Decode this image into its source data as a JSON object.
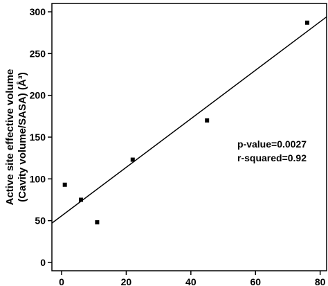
{
  "chart_data": {
    "type": "scatter",
    "title": "",
    "xlabel": "",
    "ylabel_lines": [
      "Active site effective volume",
      "(Cavity volume/SASA) (Å³)"
    ],
    "xlim": [
      -3,
      82
    ],
    "ylim": [
      -10,
      310
    ],
    "x_ticks": [
      0,
      20,
      40,
      60,
      80
    ],
    "y_ticks": [
      0,
      50,
      100,
      150,
      200,
      250,
      300
    ],
    "points": [
      {
        "x": 1,
        "y": 93
      },
      {
        "x": 6,
        "y": 75
      },
      {
        "x": 11,
        "y": 48
      },
      {
        "x": 22,
        "y": 123
      },
      {
        "x": 45,
        "y": 170
      },
      {
        "x": 76,
        "y": 287
      }
    ],
    "fit_line": {
      "x_start": -3,
      "y_start": 47,
      "x_end": 82,
      "y_end": 294
    },
    "annotations": [
      "p-value=0.0027",
      "r-squared=0.92"
    ],
    "grid": false,
    "legend": "none"
  }
}
